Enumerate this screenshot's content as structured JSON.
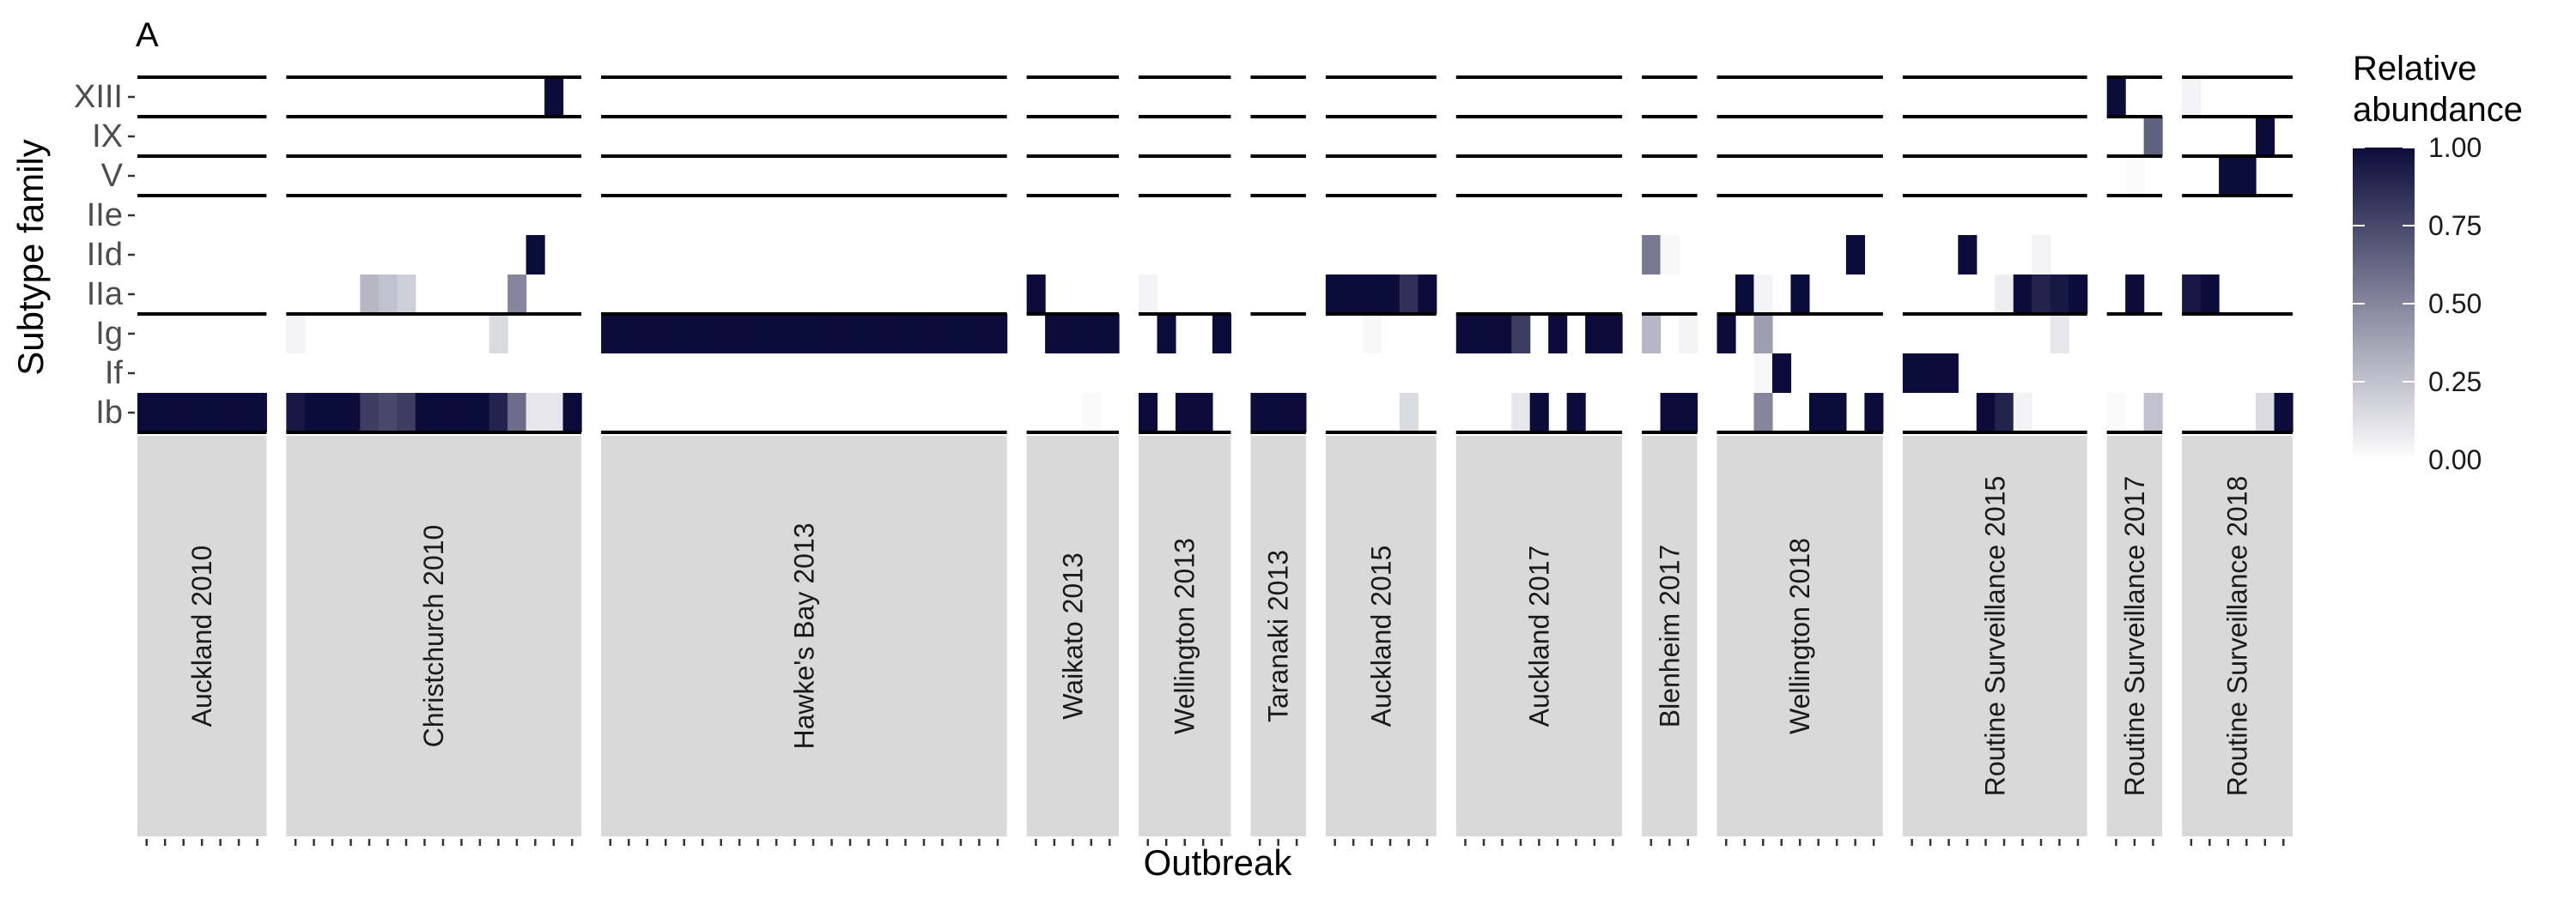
{
  "panel_label": "A",
  "chart_data": {
    "type": "heatmap",
    "xlabel": "Outbreak",
    "ylabel": "Subtype family",
    "legend": {
      "title_lines": [
        "Relative",
        "abundance"
      ],
      "ticks": [
        "1.00",
        "0.75",
        "0.50",
        "0.25",
        "0.00"
      ],
      "range": [
        0,
        1
      ],
      "low_color": "#ffffff",
      "high_color": "#0b0c3a",
      "placement": "right"
    },
    "rows": [
      "XIII",
      "IX",
      "V",
      "IIe",
      "IId",
      "IIa",
      "Ig",
      "If",
      "Ib"
    ],
    "row_groups": [
      [
        "XIII"
      ],
      [
        "IX"
      ],
      [
        "V"
      ],
      [
        "IIe",
        "IId",
        "IIa"
      ],
      [
        "Ig",
        "If",
        "Ib"
      ]
    ],
    "strip_color": "#d9d9d9",
    "facets": [
      {
        "name": "Auckland 2010",
        "n": 7,
        "cells": {
          "Ib": [
            1,
            1,
            1,
            1,
            1,
            1,
            1
          ]
        }
      },
      {
        "name": "Christchurch 2010",
        "n": 16,
        "cells": {
          "XIII": [
            0,
            0,
            0,
            0,
            0,
            0,
            0,
            0,
            0,
            0,
            0,
            0,
            0,
            0,
            1,
            0
          ],
          "IId": [
            0,
            0,
            0,
            0,
            0,
            0,
            0,
            0,
            0,
            0,
            0,
            0,
            0,
            1,
            0,
            0
          ],
          "IIa": [
            0,
            0,
            0,
            0,
            0.3,
            0.25,
            0.2,
            0,
            0,
            0,
            0,
            0,
            0.5,
            0,
            0,
            0
          ],
          "Ig": [
            0.05,
            0,
            0,
            0,
            0,
            0,
            0,
            0,
            0,
            0,
            0,
            0.15,
            0,
            0,
            0,
            0
          ],
          "Ib": [
            0.95,
            1,
            1,
            1,
            0.8,
            0.75,
            0.8,
            1,
            1,
            1,
            1,
            0.9,
            0.6,
            0.1,
            0.1,
            1
          ]
        }
      },
      {
        "name": "Hawke's Bay 2013",
        "n": 22,
        "cells": {
          "Ig": [
            1,
            1,
            1,
            1,
            1,
            1,
            1,
            1,
            1,
            1,
            1,
            1,
            1,
            1,
            1,
            1,
            1,
            1,
            1,
            1,
            1,
            1
          ]
        }
      },
      {
        "name": "Waikato 2013",
        "n": 5,
        "cells": {
          "IIa": [
            1,
            0,
            0,
            0,
            0
          ],
          "Ig": [
            0,
            1,
            1,
            1,
            1
          ],
          "Ib": [
            0,
            0,
            0,
            0.02,
            0
          ]
        }
      },
      {
        "name": "Wellington 2013",
        "n": 5,
        "cells": {
          "IIa": [
            0.05,
            0,
            0,
            0,
            0
          ],
          "Ig": [
            0,
            1,
            0,
            0,
            1
          ],
          "Ib": [
            1,
            0,
            1,
            1,
            0
          ]
        }
      },
      {
        "name": "Taranaki 2013",
        "n": 3,
        "cells": {
          "Ib": [
            1,
            1,
            1
          ]
        }
      },
      {
        "name": "Auckland 2015",
        "n": 6,
        "cells": {
          "IIa": [
            1,
            1,
            1,
            1,
            0.85,
            1
          ],
          "Ig": [
            0,
            0,
            0.03,
            0,
            0,
            0
          ],
          "Ib": [
            0,
            0,
            0,
            0,
            0.15,
            0
          ]
        }
      },
      {
        "name": "Auckland 2017",
        "n": 9,
        "cells": {
          "Ig": [
            1,
            1,
            1,
            0.8,
            0,
            1,
            0,
            1,
            1
          ],
          "Ib": [
            0,
            0,
            0,
            0.1,
            1,
            0,
            1,
            0,
            0
          ]
        }
      },
      {
        "name": "Blenheim 2017",
        "n": 3,
        "cells": {
          "IId": [
            0.55,
            0.03,
            0
          ],
          "Ig": [
            0.3,
            0,
            0.05
          ],
          "Ib": [
            0,
            1,
            1
          ]
        }
      },
      {
        "name": "Wellington 2018",
        "n": 9,
        "cells": {
          "IId": [
            0,
            0,
            0,
            0,
            0,
            0,
            0,
            1,
            0
          ],
          "IIa": [
            0,
            1,
            0.05,
            0,
            1,
            0,
            0,
            0,
            0
          ],
          "Ig": [
            1,
            0,
            0.4,
            0,
            0,
            0,
            0,
            0,
            0
          ],
          "If": [
            0,
            0,
            0.03,
            1,
            0,
            0,
            0,
            0,
            0
          ],
          "Ib": [
            0,
            0,
            0.5,
            0,
            0,
            1,
            1,
            0,
            1
          ]
        }
      },
      {
        "name": "Routine Surveillance 2015",
        "n": 10,
        "cells": {
          "IId": [
            0,
            0,
            0,
            1,
            0,
            0,
            0,
            0.05,
            0,
            0
          ],
          "IIa": [
            0,
            0,
            0,
            0,
            0,
            0.07,
            1,
            0.9,
            0.95,
            1
          ],
          "Ig": [
            0,
            0,
            0,
            0,
            0,
            0,
            0,
            0,
            0.1,
            0
          ],
          "If": [
            1,
            1,
            1,
            0,
            0,
            0,
            0,
            0,
            0,
            0
          ],
          "Ib": [
            0,
            0,
            0,
            0,
            1,
            0.9,
            0.05,
            0,
            0,
            0
          ]
        }
      },
      {
        "name": "Routine Surveillance 2017",
        "n": 3,
        "cells": {
          "XIII": [
            1,
            0,
            0
          ],
          "IX": [
            0,
            0,
            0.65
          ],
          "V": [
            0,
            0.02,
            0
          ],
          "IIa": [
            0,
            1,
            0
          ],
          "Ib": [
            0.02,
            0,
            0.25
          ]
        }
      },
      {
        "name": "Routine Surveillance 2018",
        "n": 6,
        "cells": {
          "XIII": [
            0.05,
            0,
            0,
            0,
            0,
            0
          ],
          "IX": [
            0,
            0,
            0,
            0,
            1,
            0
          ],
          "V": [
            0,
            0,
            1,
            1,
            0,
            0
          ],
          "IIa": [
            0.95,
            1,
            0,
            0,
            0,
            0
          ],
          "Ib": [
            0,
            0,
            0,
            0,
            0.15,
            1
          ]
        }
      }
    ]
  }
}
